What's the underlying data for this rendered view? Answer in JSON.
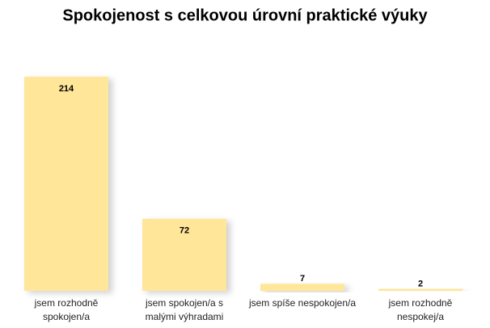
{
  "chart_data": {
    "type": "bar",
    "title": "Spokojenost s celkovou úrovní praktické výuky",
    "categories": [
      "jsem rozhodně\nspokojen/a",
      "jsem spokojen/a s\nmalými výhradami",
      "jsem spíše nespokojen/a",
      "jsem rozhodně\nnespokej/a"
    ],
    "values": [
      214,
      72,
      7,
      2
    ],
    "color": "#ffe699"
  }
}
